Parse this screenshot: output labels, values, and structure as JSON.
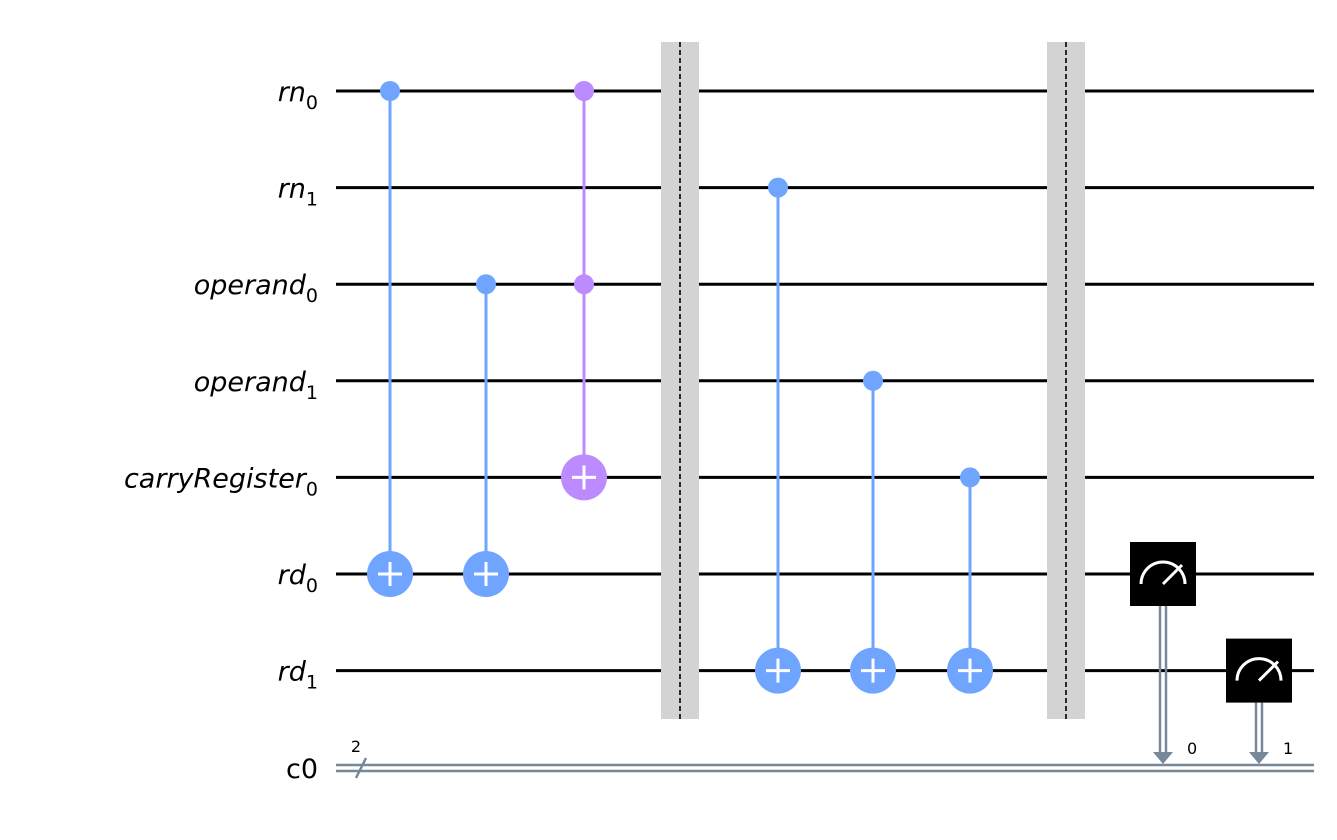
{
  "qubits": [
    {
      "name": "rn",
      "index": "0"
    },
    {
      "name": "rn",
      "index": "1"
    },
    {
      "name": "operand",
      "index": "0"
    },
    {
      "name": "operand",
      "index": "1"
    },
    {
      "name": "carryRegister",
      "index": "0"
    },
    {
      "name": "rd",
      "index": "0"
    },
    {
      "name": "rd",
      "index": "1"
    }
  ],
  "classical_register": {
    "name": "c0",
    "size_label": "2",
    "bit_labels": [
      "0",
      "1"
    ]
  },
  "colors": {
    "cnot": "#6fa4ff",
    "toffoli": "#bb8bff",
    "measure_box": "#000000",
    "classical_wire": "#778899",
    "barrier": "#d3d3d3",
    "wire": "#000000"
  },
  "gates": [
    {
      "type": "cx",
      "column": 0,
      "controls": [
        0
      ],
      "target": 5
    },
    {
      "type": "cx",
      "column": 1,
      "controls": [
        2
      ],
      "target": 5
    },
    {
      "type": "ccx",
      "column": 2,
      "controls": [
        0,
        2
      ],
      "target": 4
    },
    {
      "type": "barrier",
      "column": 3
    },
    {
      "type": "cx",
      "column": 4,
      "controls": [
        1
      ],
      "target": 6
    },
    {
      "type": "cx",
      "column": 5,
      "controls": [
        3
      ],
      "target": 6
    },
    {
      "type": "cx",
      "column": 6,
      "controls": [
        4
      ],
      "target": 6
    },
    {
      "type": "barrier",
      "column": 7
    },
    {
      "type": "measure",
      "column": 8,
      "qubit": 5,
      "clbit": 0
    },
    {
      "type": "measure",
      "column": 9,
      "qubit": 6,
      "clbit": 1
    }
  ]
}
